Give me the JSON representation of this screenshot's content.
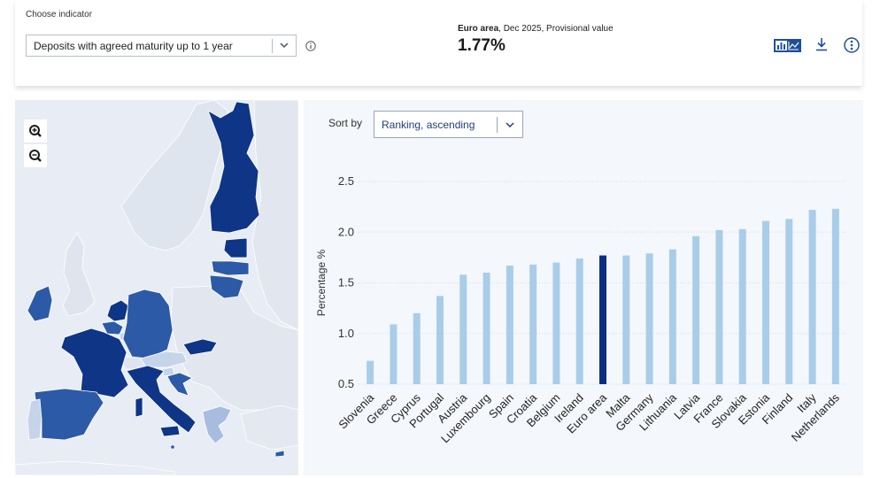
{
  "indicator": {
    "label": "Choose indicator",
    "selected": "Deposits with agreed maturity up to 1 year"
  },
  "headline": {
    "area": "Euro area",
    "detail": ", Dec 2025, Provisional value",
    "value": "1.77%"
  },
  "toolbar": {
    "icons": [
      "bar-chart-icon",
      "line-chart-icon",
      "download-icon",
      "more-options-icon"
    ]
  },
  "map": {
    "zoom_in": "zoom-in-icon",
    "zoom_out": "zoom-out-icon"
  },
  "sort": {
    "label": "Sort by",
    "selected": "Ranking, ascending"
  },
  "colors": {
    "bar": "#a9cde9",
    "highlight": "#0a2e82",
    "map_dark": "#0e3586",
    "map_mid": "#2c5aa6",
    "map_light": "#c6d4ea",
    "map_nonea": "#e3e8f1"
  },
  "chart_data": {
    "type": "bar",
    "ylabel": "Percentage %",
    "ylim": [
      0.5,
      2.5
    ],
    "yticks": [
      "0.5",
      "1.0",
      "1.5",
      "2.0",
      "2.5"
    ],
    "grid": true,
    "highlight": "Euro area",
    "categories": [
      "Slovenia",
      "Greece",
      "Cyprus",
      "Portugal",
      "Austria",
      "Luxembourg",
      "Spain",
      "Croatia",
      "Belgium",
      "Ireland",
      "Euro area",
      "Malta",
      "Germany",
      "Lithuania",
      "Latvia",
      "France",
      "Slovakia",
      "Estonia",
      "Finland",
      "Italy",
      "Netherlands"
    ],
    "values": [
      0.73,
      1.09,
      1.2,
      1.37,
      1.58,
      1.6,
      1.67,
      1.68,
      1.7,
      1.74,
      1.77,
      1.77,
      1.79,
      1.83,
      1.96,
      2.02,
      2.03,
      2.11,
      2.13,
      2.22,
      2.23
    ]
  }
}
